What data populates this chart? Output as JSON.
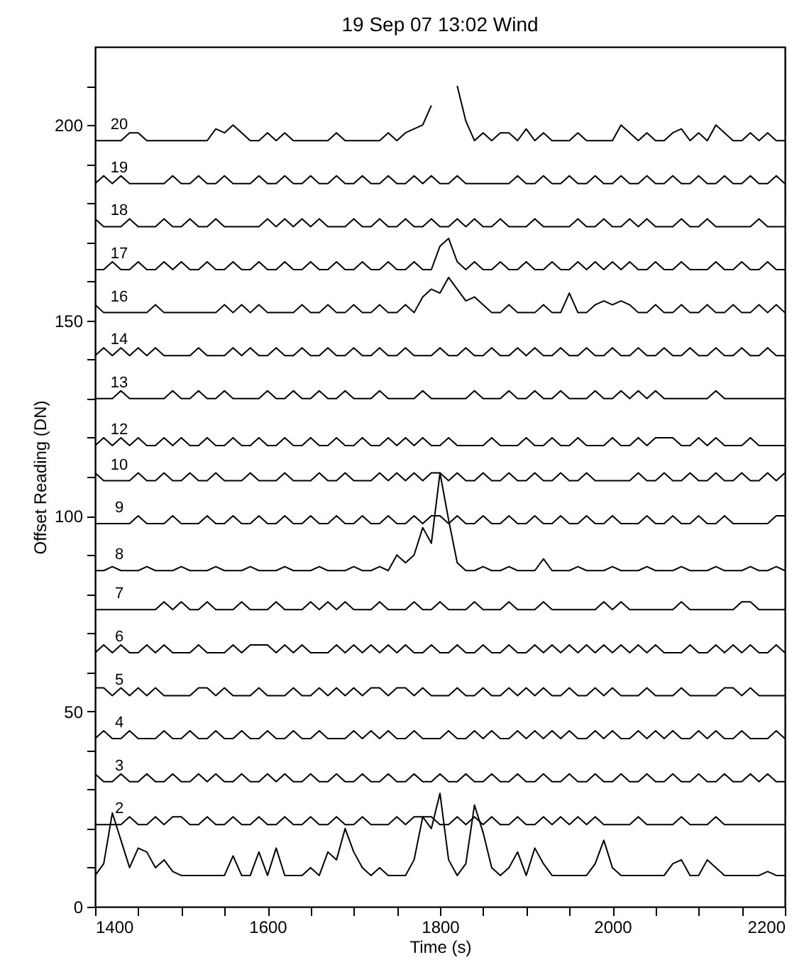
{
  "chart_data": {
    "type": "line",
    "title": "19 Sep 07 13:02     Wind",
    "xlabel": "Time (s)",
    "ylabel": "Offset Reading (DN)",
    "xlim": [
      1400,
      2200
    ],
    "ylim": [
      0,
      220
    ],
    "xticks": [
      1400,
      {
        "value": 1450,
        "label": null
      },
      {
        "value": 1500,
        "label": null
      },
      {
        "value": 1550,
        "label": null
      },
      1600,
      {
        "value": 1650,
        "label": null
      },
      {
        "value": 1700,
        "label": null
      },
      {
        "value": 1750,
        "label": null
      },
      1800,
      {
        "value": 1850,
        "label": null
      },
      {
        "value": 1900,
        "label": null
      },
      {
        "value": 1950,
        "label": null
      },
      2000,
      {
        "value": 2050,
        "label": null
      },
      {
        "value": 2100,
        "label": null
      },
      {
        "value": 2150,
        "label": null
      },
      2200
    ],
    "yticks": [
      0,
      {
        "value": 10,
        "label": null
      },
      {
        "value": 20,
        "label": null
      },
      {
        "value": 30,
        "label": null
      },
      {
        "value": 40,
        "label": null
      },
      50,
      {
        "value": 60,
        "label": null
      },
      {
        "value": 70,
        "label": null
      },
      {
        "value": 80,
        "label": null
      },
      {
        "value": 90,
        "label": null
      },
      100,
      {
        "value": 110,
        "label": null
      },
      {
        "value": 120,
        "label": null
      },
      {
        "value": 130,
        "label": null
      },
      {
        "value": 140,
        "label": null
      },
      150,
      {
        "value": 160,
        "label": null
      },
      {
        "value": 170,
        "label": null
      },
      {
        "value": 180,
        "label": null
      },
      {
        "value": 190,
        "label": null
      },
      200,
      {
        "value": 210,
        "label": null
      }
    ],
    "grid": false,
    "legend": false,
    "marker": "none",
    "line_style": "solid",
    "x": [
      1400,
      1410,
      1420,
      1430,
      1440,
      1450,
      1460,
      1470,
      1480,
      1490,
      1500,
      1510,
      1520,
      1530,
      1540,
      1550,
      1560,
      1570,
      1580,
      1590,
      1600,
      1610,
      1620,
      1630,
      1640,
      1650,
      1660,
      1670,
      1680,
      1690,
      1700,
      1710,
      1720,
      1730,
      1740,
      1750,
      1760,
      1770,
      1780,
      1790,
      1800,
      1810,
      1820,
      1830,
      1840,
      1850,
      1860,
      1870,
      1880,
      1890,
      1900,
      1910,
      1920,
      1930,
      1940,
      1950,
      1960,
      1970,
      1980,
      1990,
      2000,
      2010,
      2020,
      2030,
      2040,
      2050,
      2060,
      2070,
      2080,
      2090,
      2100,
      2110,
      2120,
      2130,
      2140,
      2150,
      2160,
      2170,
      2180,
      2190,
      2200
    ],
    "series": [
      {
        "name": "20",
        "color": "#000000",
        "values": [
          196,
          196,
          196,
          196,
          198,
          198,
          196,
          196,
          196,
          196,
          196,
          196,
          196,
          196,
          199,
          198,
          200,
          198,
          196,
          196,
          198,
          196,
          198,
          196,
          196,
          196,
          196,
          196,
          198,
          196,
          196,
          196,
          196,
          196,
          198,
          196,
          198,
          199,
          200,
          205,
          null,
          null,
          210,
          201,
          196,
          198,
          196,
          198,
          198,
          196,
          199,
          196,
          198,
          196,
          196,
          196,
          198,
          196,
          196,
          196,
          196,
          200,
          198,
          196,
          198,
          196,
          196,
          198,
          199,
          196,
          198,
          196,
          200,
          198,
          196,
          196,
          198,
          196,
          198,
          196,
          196
        ]
      },
      {
        "name": "19",
        "color": "#000000",
        "values": [
          185,
          187,
          185,
          187,
          185,
          185,
          185,
          185,
          185,
          187,
          185,
          185,
          187,
          185,
          185,
          187,
          185,
          185,
          185,
          187,
          185,
          185,
          187,
          185,
          185,
          187,
          185,
          185,
          187,
          185,
          185,
          187,
          185,
          185,
          187,
          185,
          185,
          187,
          185,
          187,
          185,
          185,
          187,
          185,
          185,
          185,
          185,
          185,
          185,
          187,
          185,
          185,
          187,
          185,
          185,
          187,
          185,
          185,
          187,
          185,
          185,
          187,
          185,
          185,
          187,
          185,
          185,
          187,
          185,
          185,
          187,
          185,
          185,
          187,
          185,
          185,
          187,
          185,
          185,
          187,
          185
        ]
      },
      {
        "name": "18",
        "color": "#000000",
        "values": [
          176,
          174,
          174,
          174,
          176,
          174,
          174,
          174,
          176,
          174,
          174,
          176,
          174,
          174,
          176,
          174,
          174,
          174,
          174,
          174,
          176,
          174,
          176,
          174,
          176,
          174,
          176,
          174,
          174,
          174,
          176,
          174,
          174,
          176,
          174,
          174,
          176,
          174,
          174,
          176,
          174,
          174,
          176,
          174,
          176,
          174,
          174,
          176,
          174,
          174,
          174,
          176,
          174,
          174,
          174,
          174,
          176,
          174,
          174,
          176,
          174,
          174,
          176,
          174,
          176,
          174,
          174,
          174,
          176,
          174,
          174,
          176,
          174,
          174,
          174,
          174,
          174,
          176,
          174,
          174,
          174
        ]
      },
      {
        "name": "17",
        "color": "#000000",
        "values": [
          163,
          163,
          165,
          163,
          163,
          165,
          163,
          163,
          165,
          163,
          165,
          163,
          163,
          165,
          163,
          163,
          165,
          163,
          163,
          165,
          163,
          163,
          165,
          163,
          163,
          165,
          163,
          163,
          165,
          163,
          163,
          165,
          163,
          163,
          165,
          163,
          163,
          165,
          163,
          163,
          169,
          171,
          165,
          163,
          165,
          163,
          163,
          165,
          163,
          163,
          165,
          163,
          163,
          165,
          163,
          163,
          165,
          163,
          165,
          163,
          165,
          163,
          165,
          163,
          163,
          165,
          163,
          163,
          165,
          163,
          163,
          163,
          165,
          163,
          163,
          165,
          163,
          163,
          165,
          163,
          163
        ]
      },
      {
        "name": "16",
        "color": "#000000",
        "values": [
          154,
          152,
          152,
          152,
          152,
          152,
          152,
          154,
          152,
          152,
          152,
          152,
          152,
          152,
          152,
          154,
          152,
          154,
          152,
          154,
          152,
          152,
          152,
          152,
          154,
          152,
          152,
          154,
          152,
          152,
          154,
          152,
          152,
          154,
          152,
          152,
          154,
          152,
          156,
          158,
          157,
          161,
          158,
          155,
          156,
          154,
          152,
          152,
          154,
          152,
          152,
          152,
          154,
          152,
          152,
          157,
          152,
          152,
          154,
          155,
          154,
          155,
          154,
          152,
          152,
          154,
          152,
          152,
          154,
          152,
          152,
          154,
          152,
          152,
          154,
          152,
          152,
          154,
          152,
          154,
          152
        ]
      },
      {
        "name": "14",
        "color": "#000000",
        "values": [
          141,
          143,
          141,
          143,
          141,
          143,
          141,
          143,
          141,
          141,
          141,
          141,
          143,
          141,
          141,
          141,
          143,
          141,
          143,
          141,
          141,
          143,
          141,
          141,
          143,
          141,
          141,
          143,
          141,
          141,
          143,
          141,
          141,
          143,
          141,
          141,
          143,
          141,
          141,
          141,
          143,
          141,
          141,
          143,
          141,
          141,
          143,
          141,
          141,
          143,
          141,
          143,
          141,
          141,
          143,
          141,
          141,
          143,
          141,
          141,
          143,
          141,
          141,
          143,
          141,
          141,
          143,
          141,
          141,
          143,
          141,
          141,
          143,
          141,
          141,
          143,
          141,
          141,
          143,
          141,
          141
        ]
      },
      {
        "name": "13",
        "color": "#000000",
        "values": [
          130,
          130,
          130,
          132,
          130,
          130,
          130,
          130,
          130,
          132,
          130,
          130,
          132,
          130,
          130,
          132,
          130,
          130,
          130,
          130,
          132,
          130,
          130,
          132,
          130,
          130,
          132,
          130,
          130,
          132,
          130,
          130,
          130,
          132,
          130,
          130,
          130,
          130,
          132,
          130,
          130,
          130,
          130,
          130,
          132,
          130,
          130,
          130,
          132,
          130,
          130,
          132,
          130,
          130,
          132,
          130,
          130,
          130,
          132,
          130,
          130,
          132,
          130,
          132,
          130,
          132,
          130,
          130,
          130,
          130,
          130,
          130,
          132,
          130,
          130,
          130,
          130,
          130,
          130,
          130,
          130
        ]
      },
      {
        "name": "12",
        "color": "#000000",
        "values": [
          118,
          120,
          118,
          120,
          118,
          120,
          118,
          118,
          120,
          118,
          120,
          118,
          118,
          120,
          118,
          118,
          120,
          118,
          118,
          120,
          118,
          118,
          120,
          118,
          118,
          120,
          118,
          118,
          120,
          118,
          118,
          120,
          118,
          118,
          120,
          118,
          120,
          118,
          120,
          118,
          118,
          120,
          118,
          118,
          118,
          118,
          120,
          118,
          118,
          118,
          120,
          118,
          118,
          120,
          118,
          118,
          120,
          118,
          118,
          118,
          120,
          118,
          118,
          120,
          118,
          120,
          120,
          120,
          118,
          118,
          120,
          118,
          120,
          118,
          118,
          118,
          120,
          118,
          118,
          118,
          118
        ]
      },
      {
        "name": "10",
        "color": "#000000",
        "values": [
          111,
          109,
          109,
          109,
          109,
          111,
          109,
          109,
          111,
          109,
          109,
          111,
          109,
          109,
          111,
          109,
          109,
          109,
          111,
          109,
          109,
          109,
          111,
          109,
          109,
          109,
          111,
          109,
          109,
          111,
          109,
          109,
          109,
          111,
          109,
          111,
          109,
          111,
          109,
          111,
          111,
          109,
          111,
          109,
          109,
          111,
          109,
          109,
          111,
          109,
          109,
          111,
          109,
          109,
          111,
          109,
          109,
          111,
          109,
          109,
          109,
          109,
          109,
          111,
          109,
          109,
          111,
          109,
          109,
          111,
          109,
          109,
          111,
          109,
          109,
          111,
          109,
          109,
          111,
          109,
          111
        ]
      },
      {
        "name": "9",
        "color": "#000000",
        "values": [
          98,
          98,
          98,
          98,
          98,
          100,
          98,
          98,
          98,
          100,
          98,
          98,
          98,
          100,
          98,
          98,
          100,
          98,
          98,
          100,
          98,
          98,
          100,
          98,
          98,
          100,
          98,
          98,
          100,
          98,
          98,
          100,
          98,
          98,
          100,
          98,
          98,
          100,
          98,
          100,
          100,
          98,
          100,
          98,
          98,
          100,
          98,
          98,
          100,
          98,
          98,
          100,
          98,
          98,
          100,
          98,
          98,
          100,
          98,
          98,
          100,
          98,
          98,
          98,
          100,
          98,
          98,
          100,
          98,
          98,
          100,
          98,
          98,
          100,
          98,
          98,
          98,
          98,
          98,
          100,
          100
        ]
      },
      {
        "name": "8",
        "color": "#000000",
        "values": [
          86,
          86,
          87,
          86,
          86,
          86,
          87,
          86,
          86,
          86,
          87,
          86,
          86,
          86,
          87,
          86,
          86,
          86,
          87,
          86,
          86,
          86,
          87,
          86,
          86,
          86,
          87,
          86,
          86,
          86,
          87,
          86,
          86,
          87,
          86,
          90,
          88,
          90,
          97,
          93,
          111,
          99,
          88,
          86,
          86,
          87,
          86,
          86,
          87,
          86,
          86,
          86,
          89,
          86,
          86,
          86,
          87,
          86,
          86,
          86,
          87,
          86,
          86,
          86,
          87,
          86,
          86,
          86,
          87,
          86,
          86,
          86,
          87,
          86,
          86,
          86,
          87,
          86,
          86,
          87,
          86
        ]
      },
      {
        "name": "7",
        "color": "#000000",
        "values": [
          76,
          76,
          76,
          76,
          76,
          76,
          76,
          76,
          78,
          76,
          78,
          76,
          76,
          78,
          76,
          76,
          76,
          78,
          76,
          76,
          76,
          78,
          76,
          76,
          76,
          78,
          76,
          78,
          76,
          78,
          76,
          76,
          76,
          78,
          76,
          76,
          76,
          78,
          76,
          76,
          78,
          76,
          76,
          76,
          78,
          76,
          76,
          76,
          78,
          76,
          76,
          76,
          78,
          76,
          76,
          76,
          76,
          76,
          76,
          78,
          76,
          78,
          76,
          76,
          76,
          76,
          76,
          76,
          78,
          76,
          76,
          76,
          76,
          76,
          76,
          78,
          78,
          76,
          76,
          76,
          76
        ]
      },
      {
        "name": "6",
        "color": "#000000",
        "values": [
          65,
          67,
          65,
          67,
          65,
          65,
          67,
          65,
          67,
          65,
          65,
          65,
          67,
          65,
          65,
          65,
          67,
          65,
          67,
          67,
          67,
          65,
          67,
          65,
          67,
          65,
          65,
          65,
          67,
          65,
          67,
          65,
          67,
          65,
          67,
          65,
          67,
          65,
          65,
          67,
          65,
          65,
          67,
          65,
          65,
          67,
          65,
          65,
          67,
          65,
          65,
          67,
          65,
          67,
          65,
          67,
          65,
          67,
          65,
          67,
          65,
          67,
          65,
          67,
          65,
          67,
          65,
          65,
          65,
          67,
          65,
          65,
          67,
          65,
          67,
          65,
          67,
          65,
          65,
          67,
          65
        ]
      },
      {
        "name": "5",
        "color": "#000000",
        "values": [
          56,
          56,
          54,
          56,
          54,
          56,
          54,
          56,
          54,
          54,
          54,
          54,
          56,
          56,
          54,
          56,
          54,
          54,
          54,
          56,
          54,
          54,
          54,
          56,
          54,
          54,
          56,
          54,
          56,
          54,
          56,
          54,
          56,
          56,
          54,
          56,
          56,
          54,
          56,
          54,
          54,
          54,
          56,
          54,
          54,
          56,
          54,
          54,
          56,
          54,
          56,
          54,
          56,
          54,
          54,
          56,
          54,
          54,
          56,
          54,
          56,
          54,
          54,
          54,
          56,
          54,
          54,
          54,
          56,
          54,
          54,
          54,
          54,
          56,
          56,
          54,
          56,
          54,
          54,
          54,
          54
        ]
      },
      {
        "name": "4",
        "color": "#000000",
        "values": [
          43,
          45,
          43,
          43,
          45,
          43,
          43,
          43,
          45,
          43,
          43,
          45,
          43,
          43,
          45,
          43,
          43,
          45,
          43,
          43,
          45,
          43,
          43,
          45,
          43,
          43,
          45,
          43,
          43,
          43,
          45,
          43,
          45,
          43,
          45,
          43,
          43,
          45,
          43,
          43,
          43,
          45,
          43,
          43,
          45,
          43,
          45,
          43,
          43,
          45,
          43,
          45,
          43,
          45,
          43,
          45,
          43,
          43,
          45,
          43,
          45,
          43,
          43,
          45,
          43,
          45,
          43,
          45,
          43,
          43,
          45,
          43,
          45,
          43,
          43,
          45,
          43,
          43,
          43,
          45,
          43
        ]
      },
      {
        "name": "3",
        "color": "#000000",
        "values": [
          34,
          32,
          32,
          34,
          32,
          32,
          34,
          32,
          32,
          34,
          32,
          32,
          34,
          32,
          34,
          32,
          32,
          34,
          32,
          32,
          34,
          32,
          34,
          32,
          32,
          34,
          32,
          32,
          34,
          32,
          32,
          34,
          32,
          32,
          34,
          32,
          32,
          34,
          32,
          32,
          34,
          32,
          32,
          34,
          32,
          32,
          34,
          32,
          32,
          34,
          32,
          32,
          34,
          32,
          32,
          34,
          32,
          32,
          34,
          32,
          32,
          34,
          32,
          32,
          34,
          32,
          32,
          34,
          32,
          32,
          34,
          32,
          32,
          34,
          32,
          32,
          34,
          32,
          34,
          32,
          32
        ]
      },
      {
        "name": "2",
        "color": "#000000",
        "values": [
          21,
          21,
          21,
          21,
          23,
          21,
          21,
          23,
          21,
          23,
          23,
          21,
          21,
          23,
          21,
          21,
          23,
          21,
          21,
          23,
          21,
          21,
          23,
          21,
          21,
          23,
          21,
          21,
          23,
          21,
          21,
          23,
          21,
          21,
          21,
          23,
          21,
          23,
          23,
          23,
          21,
          21,
          23,
          21,
          23,
          21,
          23,
          21,
          21,
          23,
          21,
          21,
          23,
          21,
          23,
          21,
          23,
          21,
          23,
          21,
          21,
          21,
          21,
          23,
          21,
          21,
          21,
          21,
          23,
          21,
          21,
          21,
          23,
          21,
          21,
          21,
          21,
          21,
          21,
          21,
          21
        ]
      },
      {
        "color": "#000000",
        "values": [
          8,
          11,
          24,
          17,
          10,
          15,
          14,
          10,
          12,
          9,
          8,
          8,
          8,
          8,
          8,
          8,
          13,
          8,
          8,
          14,
          8,
          15,
          8,
          8,
          8,
          10,
          8,
          14,
          12,
          20,
          14,
          10,
          8,
          10,
          8,
          8,
          8,
          12,
          23,
          20,
          29,
          12,
          8,
          11,
          26,
          19,
          10,
          8,
          10,
          14,
          8,
          15,
          11,
          8,
          8,
          8,
          8,
          8,
          11,
          17,
          10,
          8,
          8,
          8,
          8,
          8,
          8,
          11,
          12,
          8,
          8,
          12,
          10,
          8,
          8,
          8,
          8,
          8,
          9,
          8,
          8
        ]
      }
    ]
  }
}
